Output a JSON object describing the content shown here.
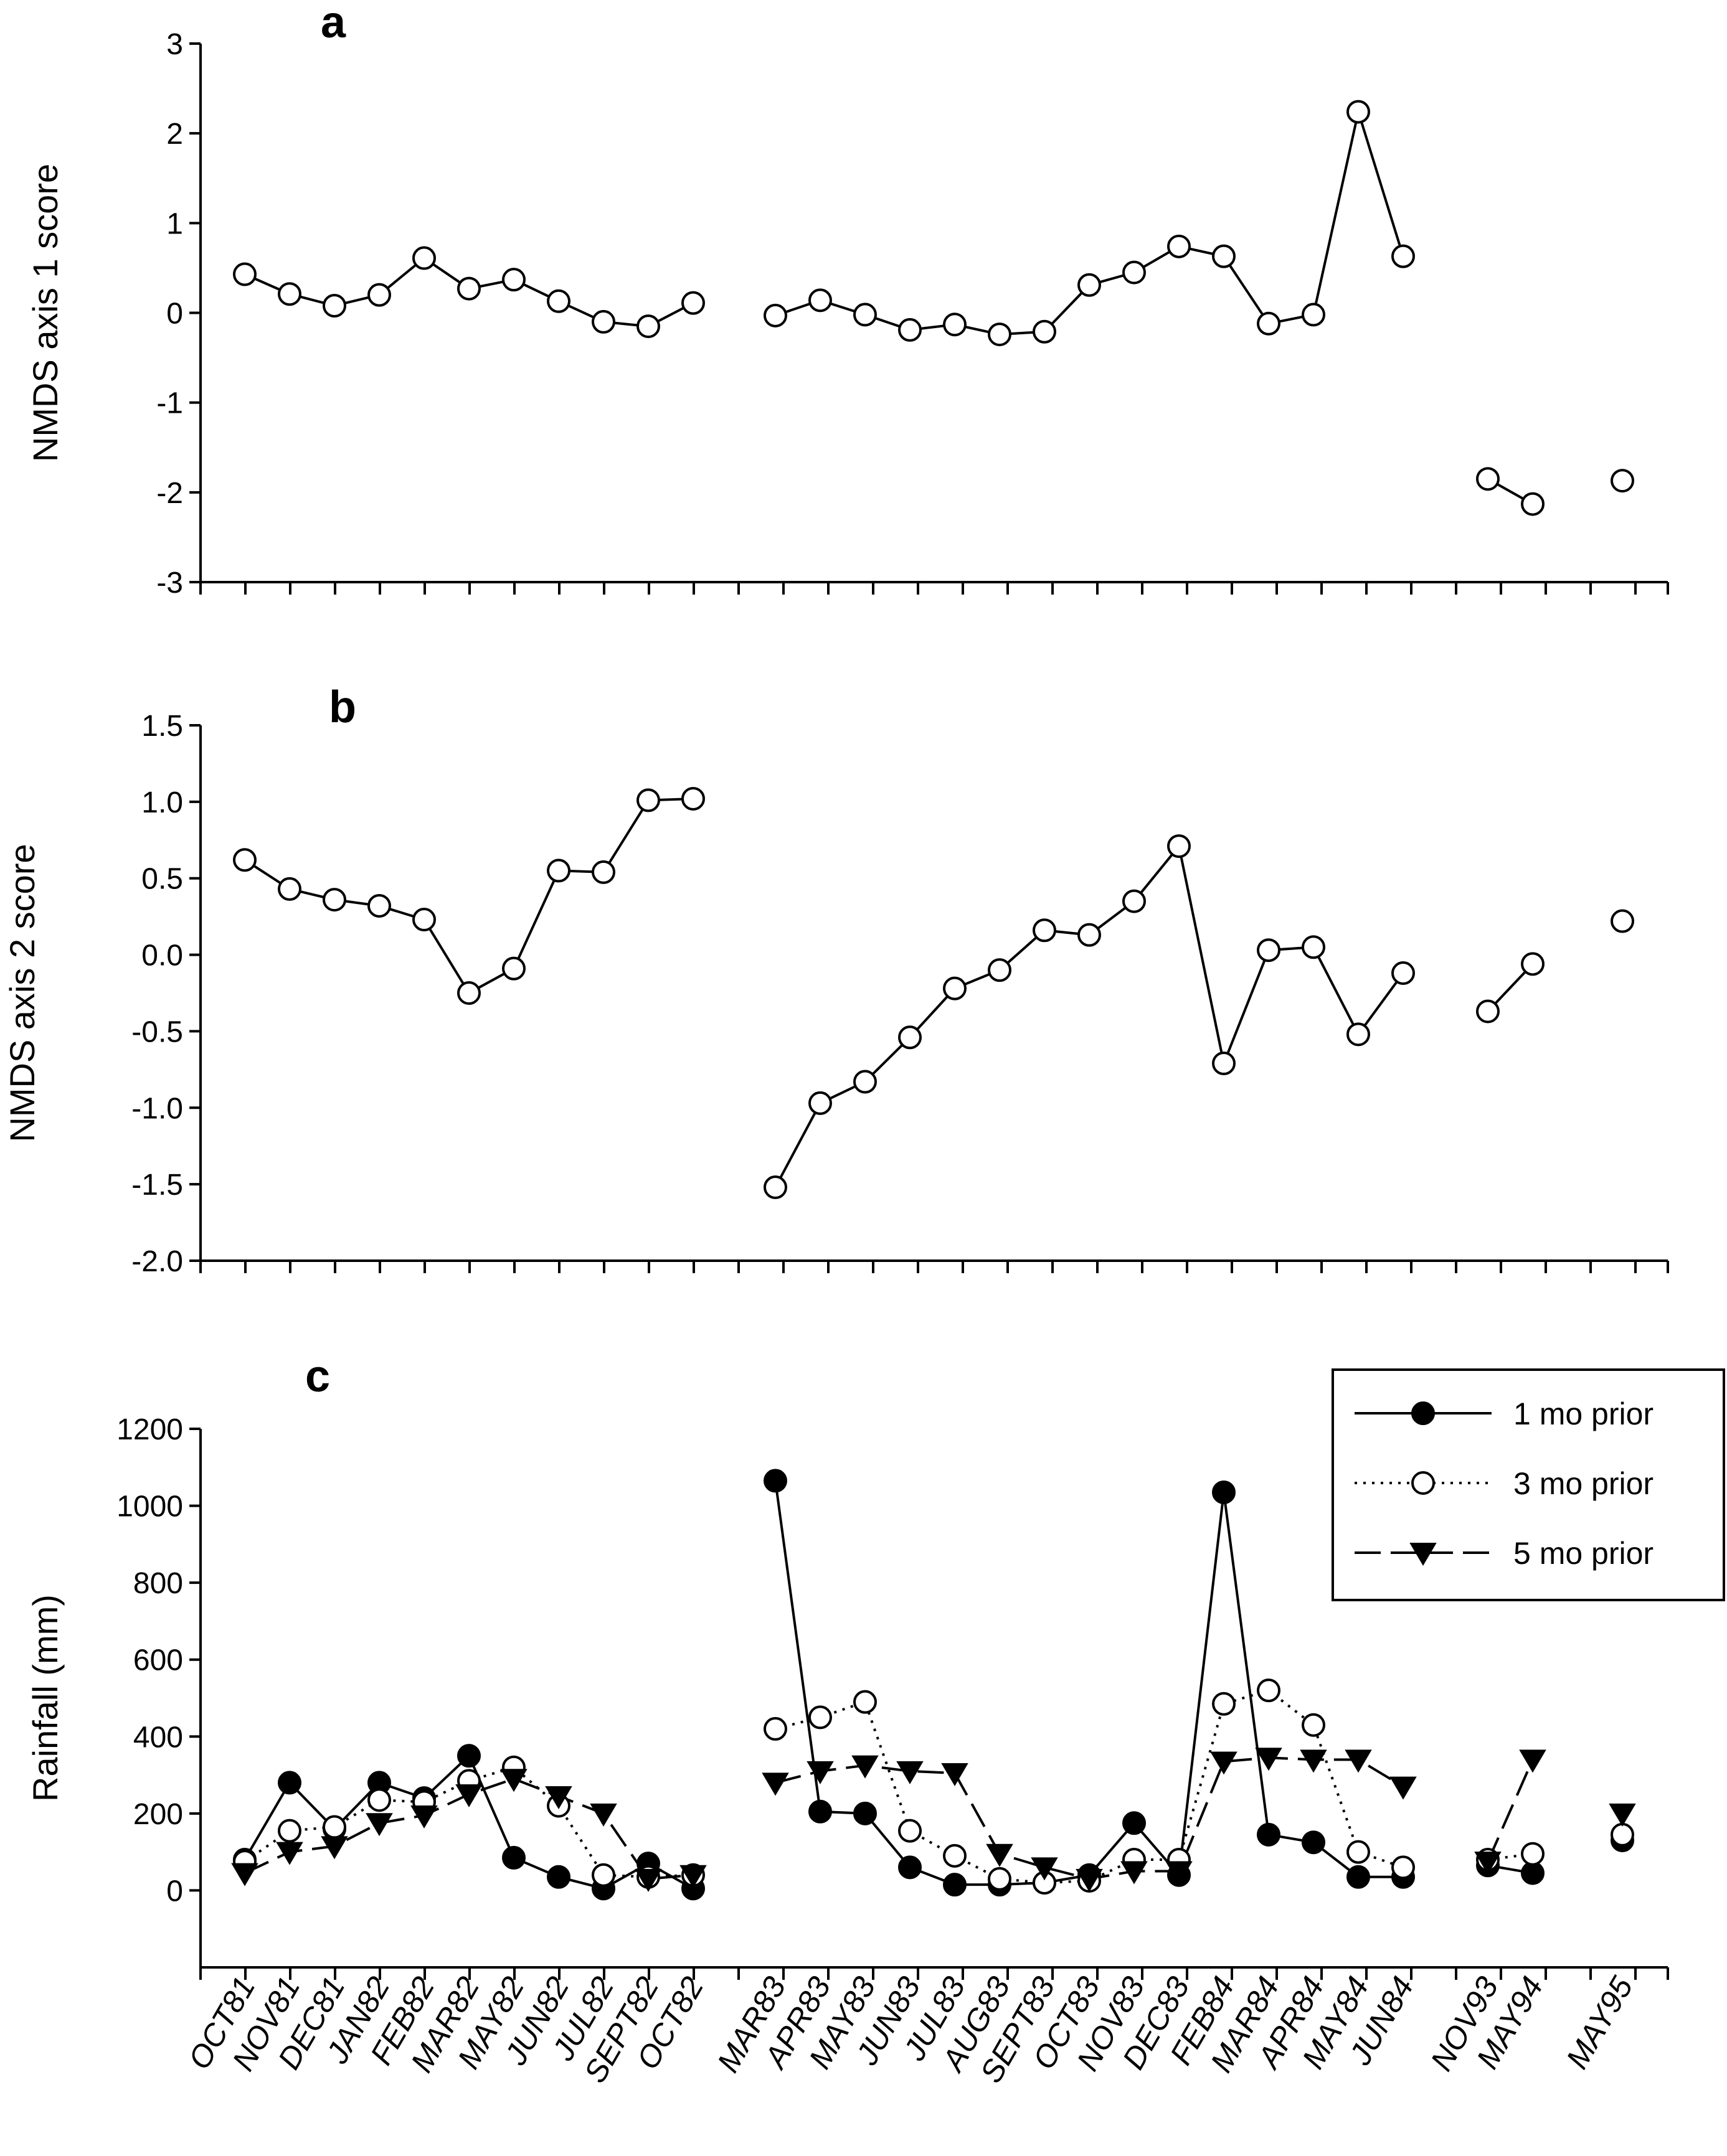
{
  "x_categories": [
    "OCT81",
    "NOV81",
    "DEC81",
    "JAN82",
    "FEB82",
    "MAR82",
    "MAY82",
    "JUN82",
    "JUL82",
    "SEPT82",
    "OCT82",
    "MAR83",
    "APR83",
    "MAY83",
    "JUN83",
    "JUL83",
    "AUG83",
    "SEPT83",
    "OCT83",
    "NOV83",
    "DEC83",
    "FEB84",
    "MAR84",
    "APR84",
    "MAY84",
    "JUN84",
    "NOV93",
    "MAY94",
    "MAY95"
  ],
  "chart_data": [
    {
      "type": "line",
      "panel": "a",
      "title": "",
      "xlabel": "",
      "ylabel": "NMDS axis 1 score",
      "ylim": [
        -3,
        3
      ],
      "yticks": [
        -3,
        -2,
        -1,
        0,
        1,
        2,
        3
      ],
      "ytick_labels": [
        "-3",
        "-2",
        "-1",
        "0",
        "1",
        "2",
        "3"
      ],
      "series": [
        {
          "name": "NMDS axis 1",
          "marker": "open-circle",
          "line": "solid",
          "values": [
            0.43,
            0.21,
            0.08,
            0.2,
            0.61,
            0.27,
            0.37,
            0.13,
            -0.1,
            -0.15,
            0.11,
            -0.03,
            0.14,
            -0.02,
            -0.19,
            -0.13,
            -0.24,
            -0.21,
            0.31,
            0.45,
            0.74,
            0.63,
            -0.12,
            -0.02,
            2.24,
            0.63,
            -1.85,
            -2.13,
            -1.87
          ]
        }
      ]
    },
    {
      "type": "line",
      "panel": "b",
      "title": "",
      "xlabel": "",
      "ylabel": "NMDS axis 2 score",
      "ylim": [
        -2.0,
        1.5
      ],
      "yticks": [
        -2.0,
        -1.5,
        -1.0,
        -0.5,
        0.0,
        0.5,
        1.0,
        1.5
      ],
      "ytick_labels": [
        "-2.0",
        "-1.5",
        "-1.0",
        "-0.5",
        "0.0",
        "0.5",
        "1.0",
        "1.5"
      ],
      "series": [
        {
          "name": "NMDS axis 2",
          "marker": "open-circle",
          "line": "solid",
          "values": [
            0.62,
            0.43,
            0.36,
            0.32,
            0.23,
            -0.25,
            -0.09,
            0.55,
            0.54,
            1.01,
            1.02,
            -1.52,
            -0.97,
            -0.83,
            -0.54,
            -0.22,
            -0.1,
            0.16,
            0.13,
            0.35,
            0.71,
            -0.71,
            0.03,
            0.05,
            -0.52,
            -0.12,
            -0.37,
            -0.06,
            0.22
          ]
        }
      ]
    },
    {
      "type": "line",
      "panel": "c",
      "title": "",
      "xlabel": "",
      "ylabel": "Rainfall (mm)",
      "ylim": [
        -200,
        1200
      ],
      "yticks": [
        0,
        200,
        400,
        600,
        800,
        1000,
        1200
      ],
      "ytick_labels": [
        "0",
        "200",
        "400",
        "600",
        "800",
        "1000",
        "1200"
      ],
      "legend_position": "top-right",
      "series": [
        {
          "name": "1 mo prior",
          "marker": "filled-circle",
          "line": "solid",
          "values": [
            80,
            280,
            160,
            280,
            240,
            350,
            85,
            35,
            5,
            70,
            5,
            1065,
            205,
            200,
            60,
            15,
            15,
            20,
            40,
            175,
            40,
            1035,
            145,
            125,
            35,
            35,
            65,
            45,
            130
          ]
        },
        {
          "name": "3 mo prior",
          "marker": "open-circle",
          "line": "dotted",
          "values": [
            75,
            155,
            165,
            235,
            230,
            285,
            320,
            220,
            40,
            35,
            40,
            420,
            450,
            490,
            155,
            90,
            30,
            20,
            25,
            80,
            80,
            485,
            520,
            430,
            100,
            60,
            80,
            95,
            145
          ]
        },
        {
          "name": "5 mo prior",
          "marker": "filled-triangle-down",
          "line": "dashed",
          "values": [
            45,
            100,
            115,
            175,
            195,
            250,
            290,
            245,
            200,
            30,
            40,
            280,
            310,
            325,
            310,
            305,
            95,
            60,
            30,
            50,
            50,
            335,
            345,
            340,
            340,
            270,
            75,
            340,
            200
          ]
        }
      ]
    }
  ]
}
